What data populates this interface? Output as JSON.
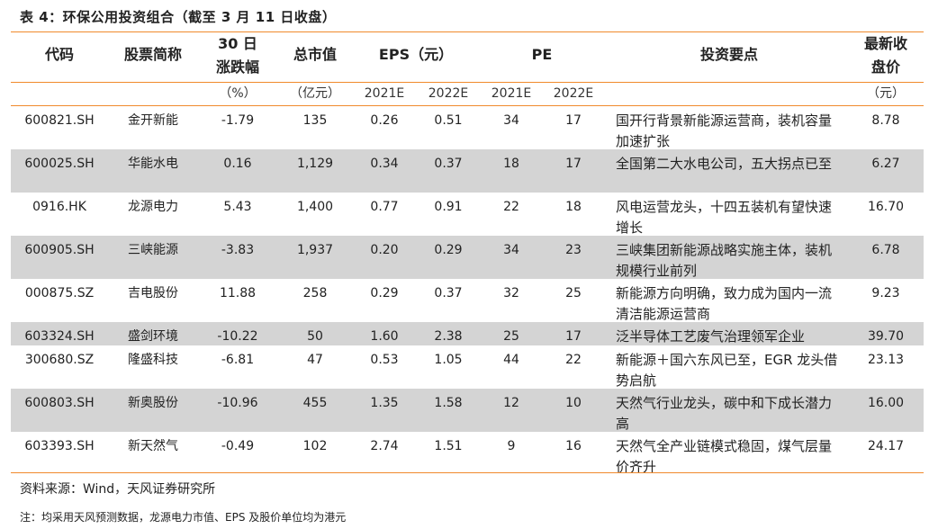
{
  "title": "表 4：环保公用投资组合（截至 3 月 11 日收盘）",
  "header": {
    "code": "代码",
    "name": "股票简称",
    "chg_line1": "30 日",
    "chg_line2": "涨跌幅",
    "chg_unit": "（%）",
    "mcap": "总市值",
    "mcap_unit": "（亿元）",
    "eps": "EPS（元）",
    "pe": "PE",
    "point": "投资要点",
    "price_line1": "最新收",
    "price_line2": "盘价",
    "price_unit": "（元）",
    "eps_2021": "2021E",
    "eps_2022": "2022E",
    "pe_2021": "2021E",
    "pe_2022": "2022E"
  },
  "rows": [
    {
      "code": "600821.SH",
      "name": "金开新能",
      "chg": "-1.79",
      "mcap": "135",
      "eps21": "0.26",
      "eps22": "0.51",
      "pe21": "34",
      "pe22": "17",
      "point": "国开行背景新能源运营商，装机容量加速扩张",
      "price": "8.78"
    },
    {
      "code": "600025.SH",
      "name": "华能水电",
      "chg": "0.16",
      "mcap": "1,129",
      "eps21": "0.34",
      "eps22": "0.37",
      "pe21": "18",
      "pe22": "17",
      "point": "全国第二大水电公司，五大拐点已至",
      "price": "6.27"
    },
    {
      "code": "0916.HK",
      "name": "龙源电力",
      "chg": "5.43",
      "mcap": "1,400",
      "eps21": "0.77",
      "eps22": "0.91",
      "pe21": "22",
      "pe22": "18",
      "point": "风电运营龙头，十四五装机有望快速增长",
      "price": "16.70"
    },
    {
      "code": "600905.SH",
      "name": "三峡能源",
      "chg": "-3.83",
      "mcap": "1,937",
      "eps21": "0.20",
      "eps22": "0.29",
      "pe21": "34",
      "pe22": "23",
      "point": "三峡集团新能源战略实施主体，装机规模行业前列",
      "price": "6.78"
    },
    {
      "code": "000875.SZ",
      "name": "吉电股份",
      "chg": "11.88",
      "mcap": "258",
      "eps21": "0.29",
      "eps22": "0.37",
      "pe21": "32",
      "pe22": "25",
      "point": "新能源方向明确，致力成为国内一流清洁能源运营商",
      "price": "9.23"
    },
    {
      "code": "603324.SH",
      "name": "盛剑环境",
      "chg": "-10.22",
      "mcap": "50",
      "eps21": "1.60",
      "eps22": "2.38",
      "pe21": "25",
      "pe22": "17",
      "point": "泛半导体工艺废气治理领军企业",
      "price": "39.70"
    },
    {
      "code": "300680.SZ",
      "name": "隆盛科技",
      "chg": "-6.81",
      "mcap": "47",
      "eps21": "0.53",
      "eps22": "1.05",
      "pe21": "44",
      "pe22": "22",
      "point": "新能源＋国六东风已至，EGR 龙头借势启航",
      "price": "23.13"
    },
    {
      "code": "600803.SH",
      "name": "新奥股份",
      "chg": "-10.96",
      "mcap": "455",
      "eps21": "1.35",
      "eps22": "1.58",
      "pe21": "12",
      "pe22": "10",
      "point": "天然气行业龙头，碳中和下成长潜力高",
      "price": "16.00"
    },
    {
      "code": "603393.SH",
      "name": "新天然气",
      "chg": "-0.49",
      "mcap": "102",
      "eps21": "2.74",
      "eps22": "1.51",
      "pe21": "9",
      "pe22": "16",
      "point": "天然气全产业链模式稳固，煤气层量价齐升",
      "price": "24.17"
    }
  ],
  "source": "资料来源：Wind，天风证券研究所",
  "note": "注：均采用天风预测数据，龙源电力市值、EPS 及股价单位均为港元"
}
